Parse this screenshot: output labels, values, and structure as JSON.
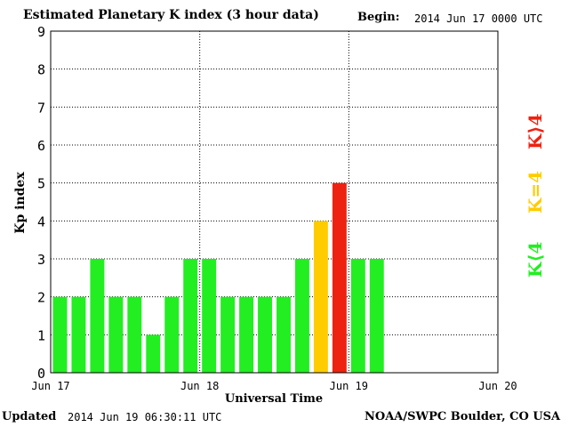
{
  "header": {
    "title": "Estimated Planetary K index (3 hour data)",
    "begin_label": "Begin:",
    "begin_value": "2014 Jun 17 0000 UTC"
  },
  "footer": {
    "updated_label": "Updated",
    "updated_value": "2014 Jun 19 06:30:11 UTC",
    "credit": "NOAA/SWPC Boulder, CO USA"
  },
  "legend": {
    "low": {
      "label": "K⟨4",
      "color": "#22ee22"
    },
    "mid": {
      "label": "K=4",
      "color": "#ffcc00"
    },
    "high": {
      "label": "K⟩4",
      "color": "#ee2211"
    }
  },
  "chart_data": {
    "type": "bar",
    "title": "Estimated Planetary K index (3 hour data)",
    "xlabel": "Universal Time",
    "ylabel": "Kp index",
    "ylim": [
      0,
      9
    ],
    "yticks": [
      "0",
      "1",
      "2",
      "3",
      "4",
      "5",
      "6",
      "7",
      "8",
      "9"
    ],
    "xticks": [
      "Jun 17",
      "Jun 18",
      "Jun 19",
      "Jun 20"
    ],
    "grid": true,
    "x": [
      "2014-06-17 00:00",
      "2014-06-17 03:00",
      "2014-06-17 06:00",
      "2014-06-17 09:00",
      "2014-06-17 12:00",
      "2014-06-17 15:00",
      "2014-06-17 18:00",
      "2014-06-17 21:00",
      "2014-06-18 00:00",
      "2014-06-18 03:00",
      "2014-06-18 06:00",
      "2014-06-18 09:00",
      "2014-06-18 12:00",
      "2014-06-18 15:00",
      "2014-06-18 18:00",
      "2014-06-18 21:00",
      "2014-06-19 00:00",
      "2014-06-19 03:00"
    ],
    "values": [
      2,
      2,
      3,
      2,
      2,
      1,
      2,
      3,
      3,
      2,
      2,
      2,
      2,
      3,
      4,
      5,
      3,
      3
    ]
  }
}
